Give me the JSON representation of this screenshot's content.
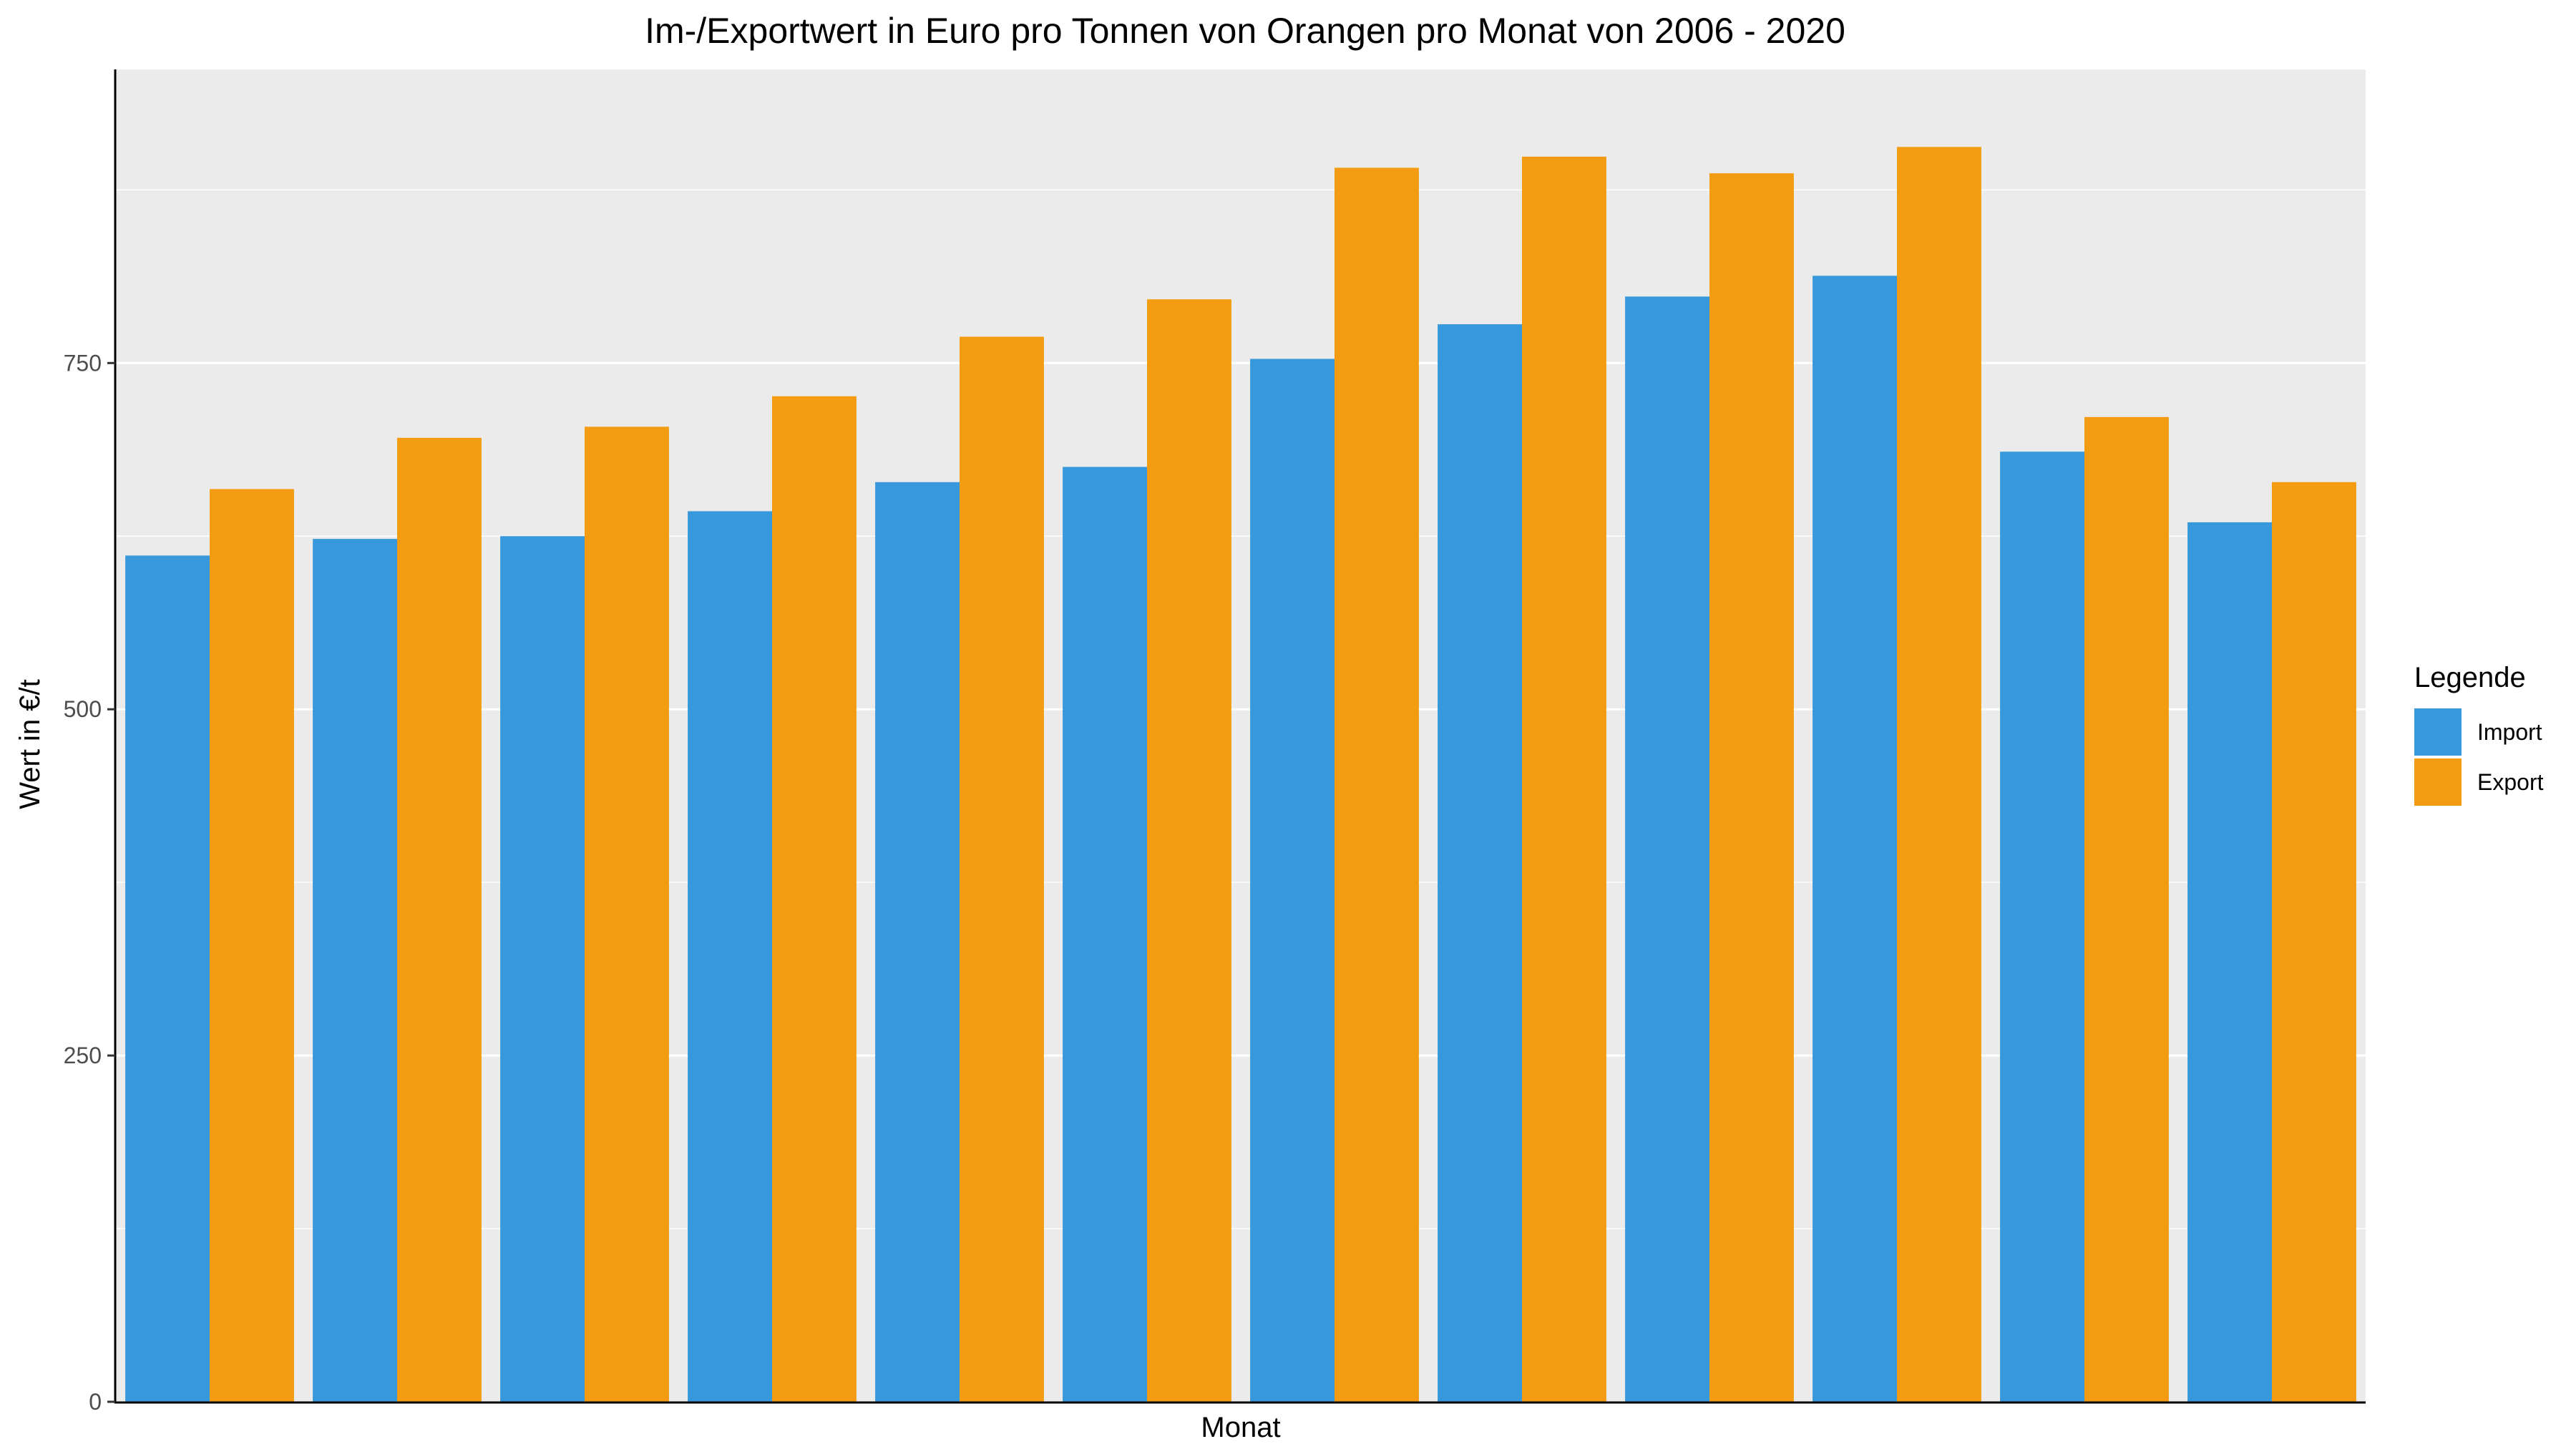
{
  "chart_data": {
    "type": "bar",
    "title": "Im-/Exportwert in Euro pro Tonnen von Orangen pro Monat von 2006 - 2020",
    "xlabel": "Monat",
    "ylabel": "Wert in €/t",
    "ylim": [
      0,
      962
    ],
    "yticks": [
      0,
      250,
      500,
      750
    ],
    "grid": true,
    "legend_title": "Legende",
    "legend_position": "right",
    "categories": [
      "",
      "",
      "",
      "",
      "",
      "",
      "",
      "",
      "",
      "",
      "",
      ""
    ],
    "series": [
      {
        "name": "Import",
        "color": "#3798db",
        "values": [
          611,
          623,
          625,
          643,
          664,
          675,
          753,
          778,
          798,
          813,
          686,
          635
        ]
      },
      {
        "name": "Export",
        "color": "#f39c12",
        "values": [
          659,
          696,
          704,
          726,
          769,
          796,
          891,
          899,
          887,
          906,
          711,
          664
        ]
      }
    ]
  }
}
